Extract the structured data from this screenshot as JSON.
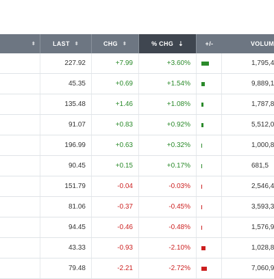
{
  "header": {
    "last": "LAST",
    "chg": "CHG",
    "pct_chg": "% CHG",
    "plus_minus": "+/-",
    "volume": "VOLUM",
    "sort_arrows": "⬍",
    "sort_desc_icon": "⇣"
  },
  "colors": {
    "positive": "#2a8a2a",
    "negative": "#cc1f1f"
  },
  "rows": [
    {
      "last": "227.92",
      "chg": "+7.99",
      "pct": "+3.60%",
      "pct_value": 3.6,
      "volume": "1,795,4"
    },
    {
      "last": "45.35",
      "chg": "+0.69",
      "pct": "+1.54%",
      "pct_value": 1.54,
      "volume": "9,889,1"
    },
    {
      "last": "135.48",
      "chg": "+1.46",
      "pct": "+1.08%",
      "pct_value": 1.08,
      "volume": "1,787,8"
    },
    {
      "last": "91.07",
      "chg": "+0.83",
      "pct": "+0.92%",
      "pct_value": 0.92,
      "volume": "5,512,0"
    },
    {
      "last": "196.99",
      "chg": "+0.63",
      "pct": "+0.32%",
      "pct_value": 0.32,
      "volume": "1,000,8"
    },
    {
      "last": "90.45",
      "chg": "+0.15",
      "pct": "+0.17%",
      "pct_value": 0.17,
      "volume": "681,5"
    },
    {
      "last": "151.79",
      "chg": "-0.04",
      "pct": "-0.03%",
      "pct_value": -0.03,
      "volume": "2,546,4"
    },
    {
      "last": "81.06",
      "chg": "-0.37",
      "pct": "-0.45%",
      "pct_value": -0.45,
      "volume": "3,593,3"
    },
    {
      "last": "94.45",
      "chg": "-0.46",
      "pct": "-0.48%",
      "pct_value": -0.48,
      "volume": "1,576,9"
    },
    {
      "last": "43.33",
      "chg": "-0.93",
      "pct": "-2.10%",
      "pct_value": -2.1,
      "volume": "1,028,8"
    },
    {
      "last": "79.48",
      "chg": "-2.21",
      "pct": "-2.72%",
      "pct_value": -2.72,
      "volume": "7,060,9"
    }
  ]
}
